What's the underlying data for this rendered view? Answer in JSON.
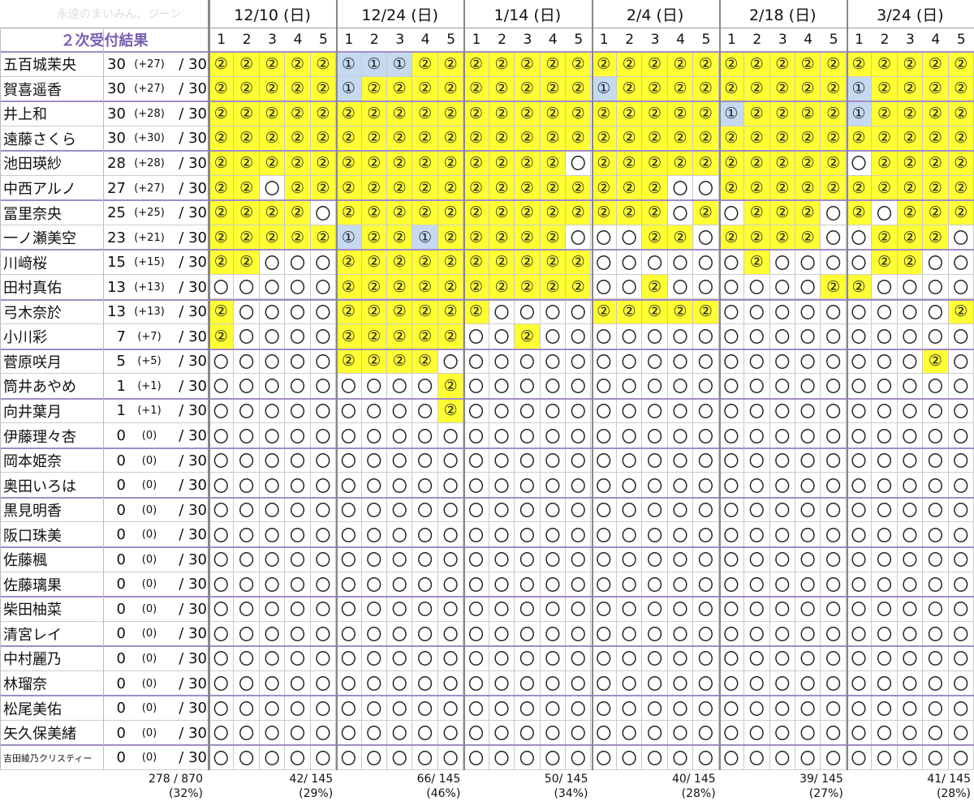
{
  "watermark": "永遠のまいみん、ジーン",
  "header_label": "２次受付結果",
  "dates": [
    "12/10 (日)",
    "12/24 (日)",
    "1/14 (日)",
    "2/4 (日)",
    "2/18 (日)",
    "3/24 (日)"
  ],
  "slots": [
    "1",
    "2",
    "3",
    "4",
    "5"
  ],
  "members": [
    {
      "name": "五百城茉央",
      "score": "30",
      "delta": "(+27)",
      "total": "/ 30",
      "cells": [
        "②",
        "②",
        "②",
        "②",
        "②",
        "①",
        "①",
        "①",
        "②",
        "②",
        "②",
        "②",
        "②",
        "②",
        "②",
        "②",
        "②",
        "②",
        "②",
        "②",
        "②",
        "②",
        "②",
        "②",
        "②",
        "②",
        "②",
        "②",
        "②",
        "②"
      ]
    },
    {
      "name": "賀喜遥香",
      "score": "30",
      "delta": "(+27)",
      "total": "/ 30",
      "cells": [
        "②",
        "②",
        "②",
        "②",
        "②",
        "①",
        "②",
        "②",
        "②",
        "②",
        "②",
        "②",
        "②",
        "②",
        "②",
        "①",
        "②",
        "②",
        "②",
        "②",
        "②",
        "②",
        "②",
        "②",
        "②",
        "①",
        "②",
        "②",
        "②",
        "②"
      ]
    },
    {
      "name": "井上和",
      "score": "30",
      "delta": "(+28)",
      "total": "/ 30",
      "cells": [
        "②",
        "②",
        "②",
        "②",
        "②",
        "②",
        "②",
        "②",
        "②",
        "②",
        "②",
        "②",
        "②",
        "②",
        "②",
        "②",
        "②",
        "②",
        "②",
        "②",
        "①",
        "②",
        "②",
        "②",
        "②",
        "①",
        "②",
        "②",
        "②",
        "②"
      ]
    },
    {
      "name": "遠藤さくら",
      "score": "30",
      "delta": "(+30)",
      "total": "/ 30",
      "cells": [
        "②",
        "②",
        "②",
        "②",
        "②",
        "②",
        "②",
        "②",
        "②",
        "②",
        "②",
        "②",
        "②",
        "②",
        "②",
        "②",
        "②",
        "②",
        "②",
        "②",
        "②",
        "②",
        "②",
        "②",
        "②",
        "②",
        "②",
        "②",
        "②",
        "②"
      ]
    },
    {
      "name": "池田瑛紗",
      "score": "28",
      "delta": "(+28)",
      "total": "/ 30",
      "cells": [
        "②",
        "②",
        "②",
        "②",
        "②",
        "②",
        "②",
        "②",
        "②",
        "②",
        "②",
        "②",
        "②",
        "②",
        "〇",
        "②",
        "②",
        "②",
        "②",
        "②",
        "②",
        "②",
        "②",
        "②",
        "②",
        "〇",
        "②",
        "②",
        "②",
        "②"
      ]
    },
    {
      "name": "中西アルノ",
      "score": "27",
      "delta": "(+27)",
      "total": "/ 30",
      "cells": [
        "②",
        "②",
        "〇",
        "②",
        "②",
        "②",
        "②",
        "②",
        "②",
        "②",
        "②",
        "②",
        "②",
        "②",
        "②",
        "②",
        "②",
        "②",
        "〇",
        "〇",
        "②",
        "②",
        "②",
        "②",
        "②",
        "②",
        "②",
        "②",
        "②",
        "②"
      ]
    },
    {
      "name": "冨里奈央",
      "score": "25",
      "delta": "(+25)",
      "total": "/ 30",
      "cells": [
        "②",
        "②",
        "②",
        "②",
        "〇",
        "②",
        "②",
        "②",
        "②",
        "②",
        "②",
        "②",
        "②",
        "②",
        "②",
        "②",
        "②",
        "②",
        "〇",
        "②",
        "〇",
        "②",
        "②",
        "②",
        "〇",
        "②",
        "〇",
        "②",
        "②",
        "②"
      ]
    },
    {
      "name": "一ノ瀬美空",
      "score": "23",
      "delta": "(+21)",
      "total": "/ 30",
      "cells": [
        "②",
        "②",
        "②",
        "②",
        "②",
        "①",
        "②",
        "②",
        "①",
        "②",
        "②",
        "②",
        "②",
        "②",
        "〇",
        "〇",
        "〇",
        "②",
        "②",
        "〇",
        "②",
        "②",
        "②",
        "②",
        "〇",
        "〇",
        "②",
        "②",
        "②",
        "〇"
      ]
    },
    {
      "name": "川﨑桜",
      "score": "15",
      "delta": "(+15)",
      "total": "/ 30",
      "cells": [
        "②",
        "②",
        "〇",
        "〇",
        "〇",
        "②",
        "②",
        "②",
        "②",
        "②",
        "②",
        "②",
        "②",
        "②",
        "②",
        "〇",
        "〇",
        "〇",
        "〇",
        "〇",
        "〇",
        "②",
        "〇",
        "〇",
        "〇",
        "〇",
        "②",
        "②",
        "〇",
        "〇"
      ]
    },
    {
      "name": "田村真佑",
      "score": "13",
      "delta": "(+13)",
      "total": "/ 30",
      "cells": [
        "〇",
        "〇",
        "〇",
        "〇",
        "〇",
        "②",
        "②",
        "②",
        "②",
        "②",
        "②",
        "②",
        "②",
        "②",
        "②",
        "〇",
        "〇",
        "②",
        "〇",
        "〇",
        "〇",
        "〇",
        "〇",
        "〇",
        "②",
        "②",
        "〇",
        "〇",
        "〇",
        "〇"
      ]
    },
    {
      "name": "弓木奈於",
      "score": "13",
      "delta": "(+13)",
      "total": "/ 30",
      "cells": [
        "②",
        "〇",
        "〇",
        "〇",
        "〇",
        "②",
        "②",
        "②",
        "②",
        "②",
        "②",
        "〇",
        "〇",
        "〇",
        "〇",
        "②",
        "②",
        "②",
        "②",
        "②",
        "〇",
        "〇",
        "〇",
        "〇",
        "〇",
        "〇",
        "〇",
        "〇",
        "〇",
        "②"
      ]
    },
    {
      "name": "小川彩",
      "score": "7",
      "delta": "(+7)",
      "total": "/ 30",
      "cells": [
        "②",
        "〇",
        "〇",
        "〇",
        "〇",
        "②",
        "②",
        "②",
        "②",
        "②",
        "〇",
        "〇",
        "②",
        "〇",
        "〇",
        "〇",
        "〇",
        "〇",
        "〇",
        "〇",
        "〇",
        "〇",
        "〇",
        "〇",
        "〇",
        "〇",
        "〇",
        "〇",
        "〇",
        "〇"
      ]
    },
    {
      "name": "菅原咲月",
      "score": "5",
      "delta": "(+5)",
      "total": "/ 30",
      "cells": [
        "〇",
        "〇",
        "〇",
        "〇",
        "〇",
        "②",
        "②",
        "②",
        "②",
        "〇",
        "〇",
        "〇",
        "〇",
        "〇",
        "〇",
        "〇",
        "〇",
        "〇",
        "〇",
        "〇",
        "〇",
        "〇",
        "〇",
        "〇",
        "〇",
        "〇",
        "〇",
        "〇",
        "②",
        "〇"
      ]
    },
    {
      "name": "筒井あやめ",
      "score": "1",
      "delta": "(+1)",
      "total": "/ 30",
      "cells": [
        "〇",
        "〇",
        "〇",
        "〇",
        "〇",
        "〇",
        "〇",
        "〇",
        "〇",
        "②",
        "〇",
        "〇",
        "〇",
        "〇",
        "〇",
        "〇",
        "〇",
        "〇",
        "〇",
        "〇",
        "〇",
        "〇",
        "〇",
        "〇",
        "〇",
        "〇",
        "〇",
        "〇",
        "〇",
        "〇"
      ]
    },
    {
      "name": "向井葉月",
      "score": "1",
      "delta": "(+1)",
      "total": "/ 30",
      "cells": [
        "〇",
        "〇",
        "〇",
        "〇",
        "〇",
        "〇",
        "〇",
        "〇",
        "〇",
        "②",
        "〇",
        "〇",
        "〇",
        "〇",
        "〇",
        "〇",
        "〇",
        "〇",
        "〇",
        "〇",
        "〇",
        "〇",
        "〇",
        "〇",
        "〇",
        "〇",
        "〇",
        "〇",
        "〇",
        "〇"
      ]
    },
    {
      "name": "伊藤理々杏",
      "score": "0",
      "delta": "(0)",
      "total": "/ 30",
      "cells": [
        "〇",
        "〇",
        "〇",
        "〇",
        "〇",
        "〇",
        "〇",
        "〇",
        "〇",
        "〇",
        "〇",
        "〇",
        "〇",
        "〇",
        "〇",
        "〇",
        "〇",
        "〇",
        "〇",
        "〇",
        "〇",
        "〇",
        "〇",
        "〇",
        "〇",
        "〇",
        "〇",
        "〇",
        "〇",
        "〇"
      ]
    },
    {
      "name": "岡本姫奈",
      "score": "0",
      "delta": "(0)",
      "total": "/ 30",
      "cells": [
        "〇",
        "〇",
        "〇",
        "〇",
        "〇",
        "〇",
        "〇",
        "〇",
        "〇",
        "〇",
        "〇",
        "〇",
        "〇",
        "〇",
        "〇",
        "〇",
        "〇",
        "〇",
        "〇",
        "〇",
        "〇",
        "〇",
        "〇",
        "〇",
        "〇",
        "〇",
        "〇",
        "〇",
        "〇",
        "〇"
      ]
    },
    {
      "name": "奥田いろは",
      "score": "0",
      "delta": "(0)",
      "total": "/ 30",
      "cells": [
        "〇",
        "〇",
        "〇",
        "〇",
        "〇",
        "〇",
        "〇",
        "〇",
        "〇",
        "〇",
        "〇",
        "〇",
        "〇",
        "〇",
        "〇",
        "〇",
        "〇",
        "〇",
        "〇",
        "〇",
        "〇",
        "〇",
        "〇",
        "〇",
        "〇",
        "〇",
        "〇",
        "〇",
        "〇",
        "〇"
      ]
    },
    {
      "name": "黒見明香",
      "score": "0",
      "delta": "(0)",
      "total": "/ 30",
      "cells": [
        "〇",
        "〇",
        "〇",
        "〇",
        "〇",
        "〇",
        "〇",
        "〇",
        "〇",
        "〇",
        "〇",
        "〇",
        "〇",
        "〇",
        "〇",
        "〇",
        "〇",
        "〇",
        "〇",
        "〇",
        "〇",
        "〇",
        "〇",
        "〇",
        "〇",
        "〇",
        "〇",
        "〇",
        "〇",
        "〇"
      ]
    },
    {
      "name": "阪口珠美",
      "score": "0",
      "delta": "(0)",
      "total": "/ 30",
      "cells": [
        "〇",
        "〇",
        "〇",
        "〇",
        "〇",
        "〇",
        "〇",
        "〇",
        "〇",
        "〇",
        "〇",
        "〇",
        "〇",
        "〇",
        "〇",
        "〇",
        "〇",
        "〇",
        "〇",
        "〇",
        "〇",
        "〇",
        "〇",
        "〇",
        "〇",
        "〇",
        "〇",
        "〇",
        "〇",
        "〇"
      ]
    },
    {
      "name": "佐藤楓",
      "score": "0",
      "delta": "(0)",
      "total": "/ 30",
      "cells": [
        "〇",
        "〇",
        "〇",
        "〇",
        "〇",
        "〇",
        "〇",
        "〇",
        "〇",
        "〇",
        "〇",
        "〇",
        "〇",
        "〇",
        "〇",
        "〇",
        "〇",
        "〇",
        "〇",
        "〇",
        "〇",
        "〇",
        "〇",
        "〇",
        "〇",
        "〇",
        "〇",
        "〇",
        "〇",
        "〇"
      ]
    },
    {
      "name": "佐藤璃果",
      "score": "0",
      "delta": "(0)",
      "total": "/ 30",
      "cells": [
        "〇",
        "〇",
        "〇",
        "〇",
        "〇",
        "〇",
        "〇",
        "〇",
        "〇",
        "〇",
        "〇",
        "〇",
        "〇",
        "〇",
        "〇",
        "〇",
        "〇",
        "〇",
        "〇",
        "〇",
        "〇",
        "〇",
        "〇",
        "〇",
        "〇",
        "〇",
        "〇",
        "〇",
        "〇",
        "〇"
      ]
    },
    {
      "name": "柴田柚菜",
      "score": "0",
      "delta": "(0)",
      "total": "/ 30",
      "cells": [
        "〇",
        "〇",
        "〇",
        "〇",
        "〇",
        "〇",
        "〇",
        "〇",
        "〇",
        "〇",
        "〇",
        "〇",
        "〇",
        "〇",
        "〇",
        "〇",
        "〇",
        "〇",
        "〇",
        "〇",
        "〇",
        "〇",
        "〇",
        "〇",
        "〇",
        "〇",
        "〇",
        "〇",
        "〇",
        "〇"
      ]
    },
    {
      "name": "清宮レイ",
      "score": "0",
      "delta": "(0)",
      "total": "/ 30",
      "cells": [
        "〇",
        "〇",
        "〇",
        "〇",
        "〇",
        "〇",
        "〇",
        "〇",
        "〇",
        "〇",
        "〇",
        "〇",
        "〇",
        "〇",
        "〇",
        "〇",
        "〇",
        "〇",
        "〇",
        "〇",
        "〇",
        "〇",
        "〇",
        "〇",
        "〇",
        "〇",
        "〇",
        "〇",
        "〇",
        "〇"
      ]
    },
    {
      "name": "中村麗乃",
      "score": "0",
      "delta": "(0)",
      "total": "/ 30",
      "cells": [
        "〇",
        "〇",
        "〇",
        "〇",
        "〇",
        "〇",
        "〇",
        "〇",
        "〇",
        "〇",
        "〇",
        "〇",
        "〇",
        "〇",
        "〇",
        "〇",
        "〇",
        "〇",
        "〇",
        "〇",
        "〇",
        "〇",
        "〇",
        "〇",
        "〇",
        "〇",
        "〇",
        "〇",
        "〇",
        "〇"
      ]
    },
    {
      "name": "林瑠奈",
      "score": "0",
      "delta": "(0)",
      "total": "/ 30",
      "cells": [
        "〇",
        "〇",
        "〇",
        "〇",
        "〇",
        "〇",
        "〇",
        "〇",
        "〇",
        "〇",
        "〇",
        "〇",
        "〇",
        "〇",
        "〇",
        "〇",
        "〇",
        "〇",
        "〇",
        "〇",
        "〇",
        "〇",
        "〇",
        "〇",
        "〇",
        "〇",
        "〇",
        "〇",
        "〇",
        "〇"
      ]
    },
    {
      "name": "松尾美佑",
      "score": "0",
      "delta": "(0)",
      "total": "/ 30",
      "cells": [
        "〇",
        "〇",
        "〇",
        "〇",
        "〇",
        "〇",
        "〇",
        "〇",
        "〇",
        "〇",
        "〇",
        "〇",
        "〇",
        "〇",
        "〇",
        "〇",
        "〇",
        "〇",
        "〇",
        "〇",
        "〇",
        "〇",
        "〇",
        "〇",
        "〇",
        "〇",
        "〇",
        "〇",
        "〇",
        "〇"
      ]
    },
    {
      "name": "矢久保美緒",
      "score": "0",
      "delta": "(0)",
      "total": "/ 30",
      "cells": [
        "〇",
        "〇",
        "〇",
        "〇",
        "〇",
        "〇",
        "〇",
        "〇",
        "〇",
        "〇",
        "〇",
        "〇",
        "〇",
        "〇",
        "〇",
        "〇",
        "〇",
        "〇",
        "〇",
        "〇",
        "〇",
        "〇",
        "〇",
        "〇",
        "〇",
        "〇",
        "〇",
        "〇",
        "〇",
        "〇"
      ]
    },
    {
      "name": "吉田綾乃クリスティー",
      "score": "0",
      "delta": "(0)",
      "total": "/ 30",
      "cells": [
        "〇",
        "〇",
        "〇",
        "〇",
        "〇",
        "〇",
        "〇",
        "〇",
        "〇",
        "〇",
        "〇",
        "〇",
        "〇",
        "〇",
        "〇",
        "〇",
        "〇",
        "〇",
        "〇",
        "〇",
        "〇",
        "〇",
        "〇",
        "〇",
        "〇",
        "〇",
        "〇",
        "〇",
        "〇",
        "〇"
      ]
    }
  ],
  "totals": {
    "overall": "278 / 870",
    "overall_pct": "(32%)",
    "groups": [
      {
        "count": "42/ 145",
        "pct": "(29%)"
      },
      {
        "count": "66/ 145",
        "pct": "(46%)"
      },
      {
        "count": "50/ 145",
        "pct": "(34%)"
      },
      {
        "count": "40/ 145",
        "pct": "(28%)"
      },
      {
        "count": "39/ 145",
        "pct": "(27%)"
      },
      {
        "count": "41/ 145",
        "pct": "(28%)"
      }
    ]
  }
}
